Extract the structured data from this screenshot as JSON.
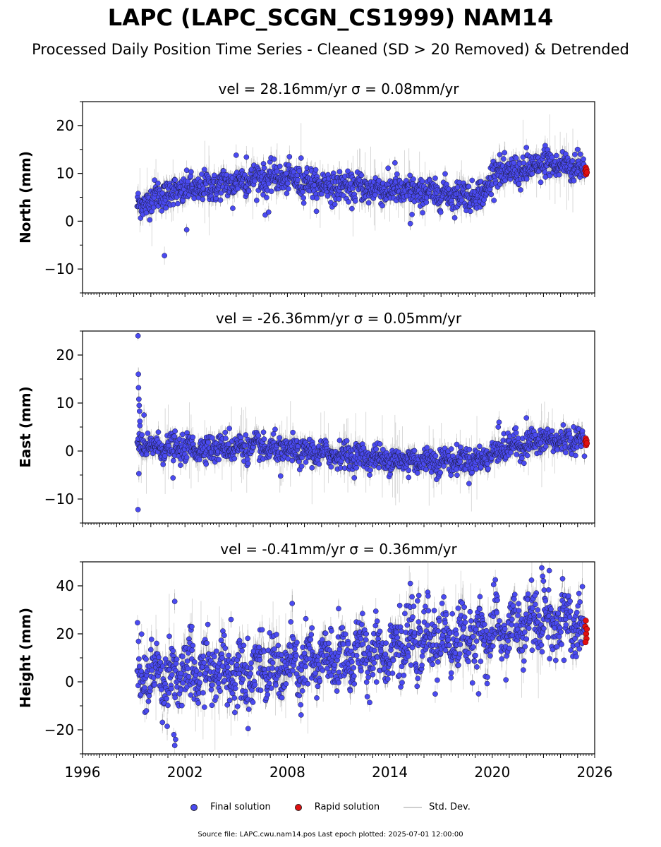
{
  "title": "LAPC (LAPC_SCGN_CS1999) NAM14",
  "subtitle": "Processed Daily Position Time Series - Cleaned (SD > 20 Removed) & Detrended",
  "legend": {
    "final": "Final solution",
    "rapid": "Rapid solution",
    "std": "Std. Dev."
  },
  "footer": "Source file: LAPC.cwu.nam14.pos  Last epoch plotted: 2025-07-01 12:00:00",
  "colors": {
    "final": "#4a4af0",
    "rapid": "#e01010",
    "std": "#c8c8c8",
    "edge": "#1a1a3a"
  },
  "chart_data": [
    {
      "type": "scatter",
      "title": "vel = 28.16mm/yr   σ = 0.08mm/yr",
      "ylabel": "North (mm)",
      "xlim": [
        1996,
        2026
      ],
      "ylim": [
        -15,
        25
      ],
      "yticks": [
        -10,
        0,
        10,
        20
      ],
      "trend": [
        [
          1999.2,
          3
        ],
        [
          2000.5,
          5.5
        ],
        [
          2002,
          6.5
        ],
        [
          2004,
          7.5
        ],
        [
          2006,
          9
        ],
        [
          2008,
          9
        ],
        [
          2010,
          7.5
        ],
        [
          2012,
          7
        ],
        [
          2014,
          6.5
        ],
        [
          2016,
          6
        ],
        [
          2018,
          5.5
        ],
        [
          2019.5,
          5.5
        ],
        [
          2020,
          10
        ],
        [
          2022,
          10.5
        ],
        [
          2023,
          12
        ],
        [
          2025.5,
          11
        ]
      ],
      "noise": 1.5,
      "outliers": [
        [
          2000.8,
          -7.2
        ],
        [
          2002.1,
          -1.8
        ],
        [
          2005.0,
          13.8
        ],
        [
          2005.6,
          13.4
        ],
        [
          2006.7,
          1.3
        ],
        [
          2006.9,
          1.9
        ],
        [
          2004.8,
          2.7
        ],
        [
          2015.2,
          -0.5
        ],
        [
          2015.3,
          1.4
        ],
        [
          2014.3,
          12.2
        ],
        [
          2022,
          15.4
        ],
        [
          2023.1,
          15.8
        ],
        [
          2025.0,
          15.0
        ],
        [
          2008.8,
          13.2
        ]
      ],
      "rapid": [
        [
          2025.45,
          10.5
        ],
        [
          2025.48,
          11.2
        ],
        [
          2025.5,
          9.8
        ],
        [
          2025.52,
          10.8
        ],
        [
          2025.54,
          10.2
        ]
      ]
    },
    {
      "type": "scatter",
      "title": "vel = -26.36mm/yr   σ = 0.05mm/yr",
      "ylabel": "East (mm)",
      "xlim": [
        1996,
        2026
      ],
      "ylim": [
        -15,
        25
      ],
      "yticks": [
        -10,
        0,
        10,
        20
      ],
      "trend": [
        [
          1999.2,
          1
        ],
        [
          2002,
          0.5
        ],
        [
          2006,
          0.8
        ],
        [
          2008,
          0
        ],
        [
          2010,
          -0.5
        ],
        [
          2012,
          -1
        ],
        [
          2014,
          -1.8
        ],
        [
          2016,
          -2
        ],
        [
          2018,
          -2
        ],
        [
          2019.5,
          -1.8
        ],
        [
          2020.2,
          0
        ],
        [
          2021,
          1
        ],
        [
          2022,
          1.5
        ],
        [
          2023,
          2.2
        ],
        [
          2025.5,
          2.2
        ]
      ],
      "noise": 1.3,
      "outliers": [
        [
          1999.25,
          24.0
        ],
        [
          1999.27,
          16.0
        ],
        [
          1999.28,
          13.2
        ],
        [
          1999.3,
          10.8
        ],
        [
          1999.32,
          9.5
        ],
        [
          1999.34,
          8.3
        ],
        [
          1999.36,
          6.2
        ],
        [
          1999.6,
          7.5
        ],
        [
          1999.25,
          -12.2
        ],
        [
          1999.3,
          -4.7
        ],
        [
          2001.3,
          -5.6
        ],
        [
          2004.6,
          4.7
        ],
        [
          2007.6,
          -5.2
        ],
        [
          2015.1,
          -5.5
        ],
        [
          2022.0,
          6.9
        ],
        [
          2020.4,
          6.0
        ],
        [
          2020.35,
          5.0
        ]
      ],
      "rapid": [
        [
          2025.45,
          2.0
        ],
        [
          2025.48,
          2.6
        ],
        [
          2025.5,
          1.2
        ],
        [
          2025.52,
          2.2
        ],
        [
          2025.54,
          1.6
        ]
      ]
    },
    {
      "type": "scatter",
      "title": "vel = -0.41mm/yr   σ = 0.36mm/yr",
      "ylabel": "Height (mm)",
      "xlim": [
        1996,
        2026
      ],
      "ylim": [
        -30,
        50
      ],
      "yticks": [
        -20,
        0,
        20,
        40
      ],
      "xticks": [
        1996,
        2002,
        2008,
        2014,
        2020,
        2026
      ],
      "trend": [
        [
          1999.2,
          3
        ],
        [
          2002,
          3
        ],
        [
          2004,
          5
        ],
        [
          2006,
          5
        ],
        [
          2008,
          6
        ],
        [
          2010,
          8
        ],
        [
          2012,
          11
        ],
        [
          2014,
          14
        ],
        [
          2016,
          17
        ],
        [
          2018,
          18
        ],
        [
          2020,
          20
        ],
        [
          2022,
          23
        ],
        [
          2023,
          26
        ],
        [
          2025.5,
          22
        ]
      ],
      "noise": 6.5,
      "outliers": [
        [
          2001.4,
          -26.5
        ],
        [
          2001.45,
          -24
        ],
        [
          2001.35,
          -22
        ],
        [
          2001.4,
          33.5
        ],
        [
          2002.4,
          23
        ],
        [
          2004.7,
          26
        ],
        [
          2005.7,
          -19.5
        ],
        [
          2008.8,
          -13.8
        ],
        [
          2008.2,
          25
        ],
        [
          2011.0,
          30.5
        ],
        [
          2015.2,
          41
        ],
        [
          2015.7,
          36
        ],
        [
          2019.2,
          -5
        ],
        [
          2022.9,
          47.5
        ],
        [
          2022.95,
          44
        ],
        [
          2023.0,
          42
        ],
        [
          2024.2,
          9
        ],
        [
          2022.5,
          36
        ]
      ],
      "rapid": [
        [
          2025.45,
          23
        ],
        [
          2025.48,
          25.5
        ],
        [
          2025.5,
          20
        ],
        [
          2025.52,
          18
        ],
        [
          2025.54,
          22
        ],
        [
          2025.46,
          16.5
        ]
      ]
    }
  ]
}
